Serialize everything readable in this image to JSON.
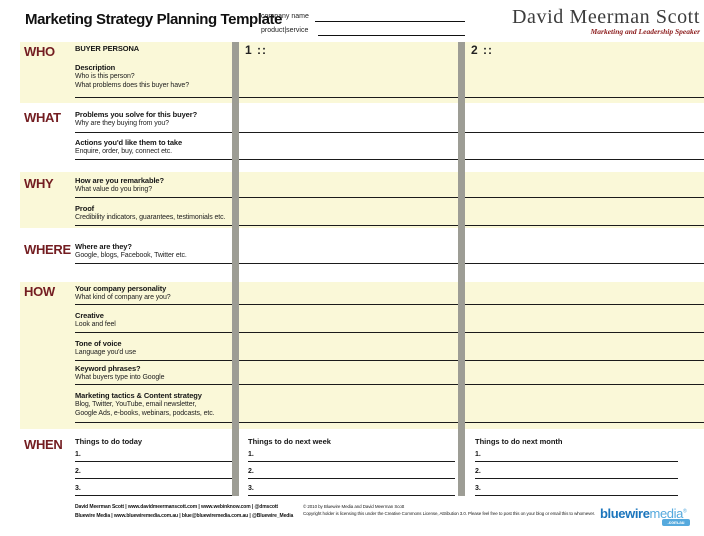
{
  "header": {
    "title": "Marketing Strategy Planning Template",
    "fields": [
      {
        "label": "company name"
      },
      {
        "label": "product|service"
      }
    ],
    "logo": {
      "name": "David Meerman Scott",
      "tagline": "Marketing and Leadership Speaker"
    }
  },
  "columns": [
    {
      "label": "1 ::"
    },
    {
      "label": "2 ::"
    }
  ],
  "sections": [
    {
      "label": "WHO",
      "rows": [
        {
          "title": "BUYER PERSONA",
          "hints": []
        },
        {
          "title": "Description",
          "hints": [
            "Who is this person?",
            "What problems does this buyer have?"
          ]
        }
      ]
    },
    {
      "label": "WHAT",
      "rows": [
        {
          "title": "Problems you solve for this buyer?",
          "hints": [
            "Why are they buying from you?"
          ]
        },
        {
          "title": "Actions you'd like them to take",
          "hints": [
            "Enquire, order, buy, connect etc."
          ]
        }
      ]
    },
    {
      "label": "WHY",
      "rows": [
        {
          "title": "How are you remarkable?",
          "hints": [
            "What value do you bring?"
          ]
        },
        {
          "title": "Proof",
          "hints": [
            "Credibility indicators, guarantees, testimonials etc."
          ]
        }
      ]
    },
    {
      "label": "WHERE",
      "rows": [
        {
          "title": "Where are they?",
          "hints": [
            "Google, blogs, Facebook, Twitter etc."
          ]
        }
      ]
    },
    {
      "label": "HOW",
      "rows": [
        {
          "title": "Your company personality",
          "hints": [
            "What kind of company are you?"
          ]
        },
        {
          "title": "Creative",
          "hints": [
            "Look and feel"
          ]
        },
        {
          "title": "Tone of voice",
          "hints": [
            "Language you'd use"
          ]
        },
        {
          "title": "Keyword phrases?",
          "hints": [
            "What buyers type into Google"
          ]
        },
        {
          "title": "Marketing tactics & Content strategy",
          "hints": [
            "Blog, Twitter, YouTube, email newsletter,",
            "Google Ads, e-books, webinars, podcasts, etc."
          ]
        }
      ]
    },
    {
      "label": "WHEN",
      "todo_columns": [
        {
          "heading": "Things to do today",
          "items": [
            "1.",
            "2.",
            "3."
          ]
        },
        {
          "heading": "Things to do next week",
          "items": [
            "1.",
            "2.",
            "3."
          ]
        },
        {
          "heading": "Things to do next month",
          "items": [
            "1.",
            "2.",
            "3."
          ]
        }
      ]
    }
  ],
  "footer": {
    "contacts": [
      "David Meerman Scott | www.davidmeermanscott.com | www.webinknow.com | @dmscott",
      "Bluewire Media | www.bluewiremedia.com.au | blue@bluewiremedia.com.au | @Bluewire_Media"
    ],
    "copyright": [
      "© 2010 by Bluewire Media and David Meerman Scott",
      "Copyright holder is licensing this under the Creative Commons License, Attribution 3.0. Please feel free to post this on your blog or email this to whomever."
    ],
    "logo": {
      "blue": "bluewire",
      "light": "media",
      "reg": "®",
      "domain": ".com.au"
    }
  },
  "colors": {
    "maroon": "#731d21",
    "cream": "#faf8d8",
    "bar_gray": "#9d9d95",
    "logo_blue": "#1b75bc",
    "logo_light_blue": "#55a9dd"
  }
}
